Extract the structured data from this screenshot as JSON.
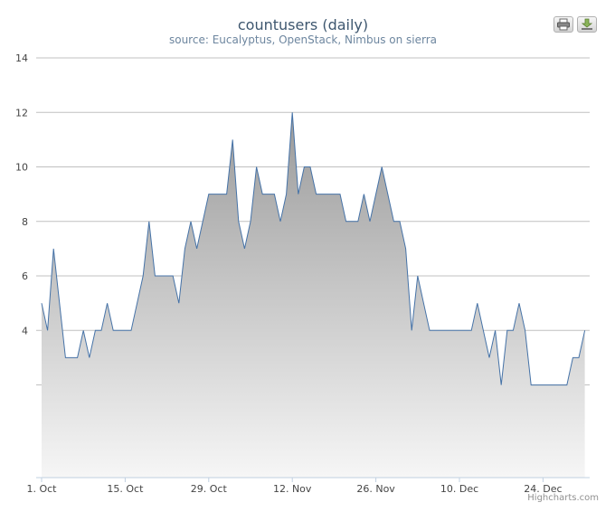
{
  "toolbar": {
    "print_icon": "printer-icon",
    "export_icon": "download-icon"
  },
  "credits": "Highcharts.com",
  "colors": {
    "line": "#4572a7",
    "area_top": "#9a9a9a",
    "area_bottom": "#f6f6f6",
    "grid": "#c0c0c0",
    "title": "#3e576f",
    "subtitle": "#6d869f"
  },
  "chart_data": {
    "type": "area",
    "title": "countusers (daily)",
    "subtitle": "source: Eucalyptus, OpenStack, Nimbus on sierra",
    "xlabel": "",
    "ylabel": "",
    "x_start": "1 Oct",
    "x_end": "31 Dec",
    "ylim": [
      -1.4,
      14
    ],
    "y_ticks": [
      14,
      12,
      10,
      8,
      6,
      4
    ],
    "gridlines": [
      14,
      12,
      10,
      8,
      6,
      4,
      2
    ],
    "x_ticks": [
      "1. Oct",
      "15. Oct",
      "29. Oct",
      "12. Nov",
      "26. Nov",
      "10. Dec",
      "24. Dec"
    ],
    "grid": true,
    "legend": "none",
    "series": [
      {
        "values": [
          5,
          4,
          7,
          5,
          3,
          3,
          3,
          4,
          3,
          4,
          4,
          5,
          4,
          4,
          4,
          4,
          5,
          6,
          8,
          6,
          6,
          6,
          6,
          5,
          7,
          8,
          7,
          8,
          9,
          9,
          9,
          9,
          11,
          8,
          7,
          8,
          10,
          9,
          9,
          9,
          8,
          9,
          12,
          9,
          10,
          10,
          9,
          9,
          9,
          9,
          9,
          8,
          8,
          8,
          9,
          8,
          9,
          10,
          9,
          8,
          8,
          7,
          4,
          6,
          5,
          4,
          4,
          4,
          4,
          4,
          4,
          4,
          4,
          5,
          4,
          3,
          4,
          2,
          4,
          4,
          5,
          4,
          2,
          2,
          2,
          2,
          2,
          2,
          2,
          3,
          3,
          4
        ]
      }
    ]
  }
}
